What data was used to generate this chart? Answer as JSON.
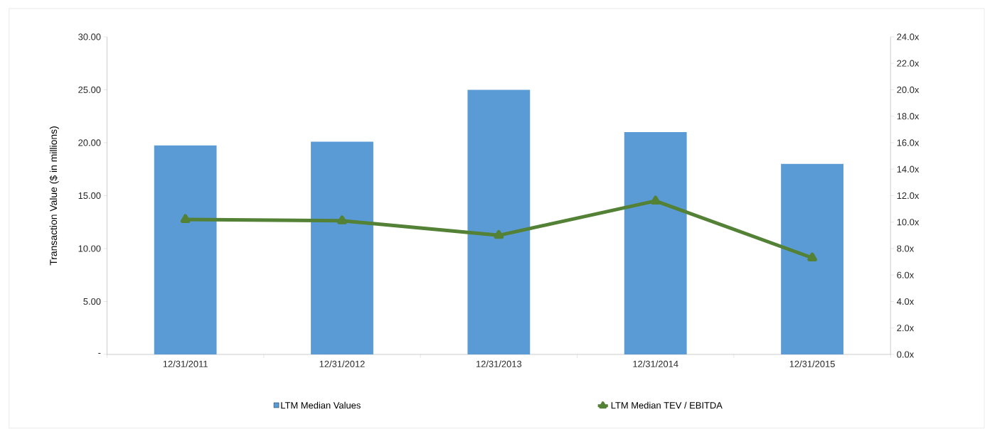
{
  "chart_data": {
    "type": "bar",
    "ylabel": "Transaction Value ($ in millions)",
    "categories": [
      "12/31/2011",
      "12/31/2012",
      "12/31/2013",
      "12/31/2014",
      "12/31/2015"
    ],
    "series": [
      {
        "name": "LTM Median Values",
        "color": "#5b9bd5",
        "values": [
          19.75,
          20.1,
          25.0,
          21.0,
          18.0
        ]
      },
      {
        "name": "LTM Median TEV / EBITDA",
        "type": "line",
        "axis": "y2",
        "color": "#538135",
        "marker": "triangle",
        "line_style": "solid",
        "values": [
          10.2,
          10.1,
          9.0,
          11.6,
          7.3
        ]
      }
    ],
    "ylim": [
      0,
      30
    ],
    "yticks": [
      {
        "value": 0,
        "label": "-"
      },
      {
        "value": 5,
        "label": "5.00"
      },
      {
        "value": 10,
        "label": "10.00"
      },
      {
        "value": 15,
        "label": "15.00"
      },
      {
        "value": 20,
        "label": "20.00"
      },
      {
        "value": 25,
        "label": "25.00"
      },
      {
        "value": 30,
        "label": "30.00"
      }
    ],
    "y2lim": [
      0,
      24
    ],
    "y2ticks": [
      {
        "value": 0,
        "label": "0.0x"
      },
      {
        "value": 2,
        "label": "2.0x"
      },
      {
        "value": 4,
        "label": "4.0x"
      },
      {
        "value": 6,
        "label": "6.0x"
      },
      {
        "value": 8,
        "label": "8.0x"
      },
      {
        "value": 10,
        "label": "10.0x"
      },
      {
        "value": 12,
        "label": "12.0x"
      },
      {
        "value": 14,
        "label": "14.0x"
      },
      {
        "value": 16,
        "label": "16.0x"
      },
      {
        "value": 18,
        "label": "18.0x"
      },
      {
        "value": 20,
        "label": "20.0x"
      },
      {
        "value": 22,
        "label": "22.0x"
      },
      {
        "value": 24,
        "label": "24.0x"
      }
    ],
    "grid": false,
    "legend": "bottom"
  }
}
